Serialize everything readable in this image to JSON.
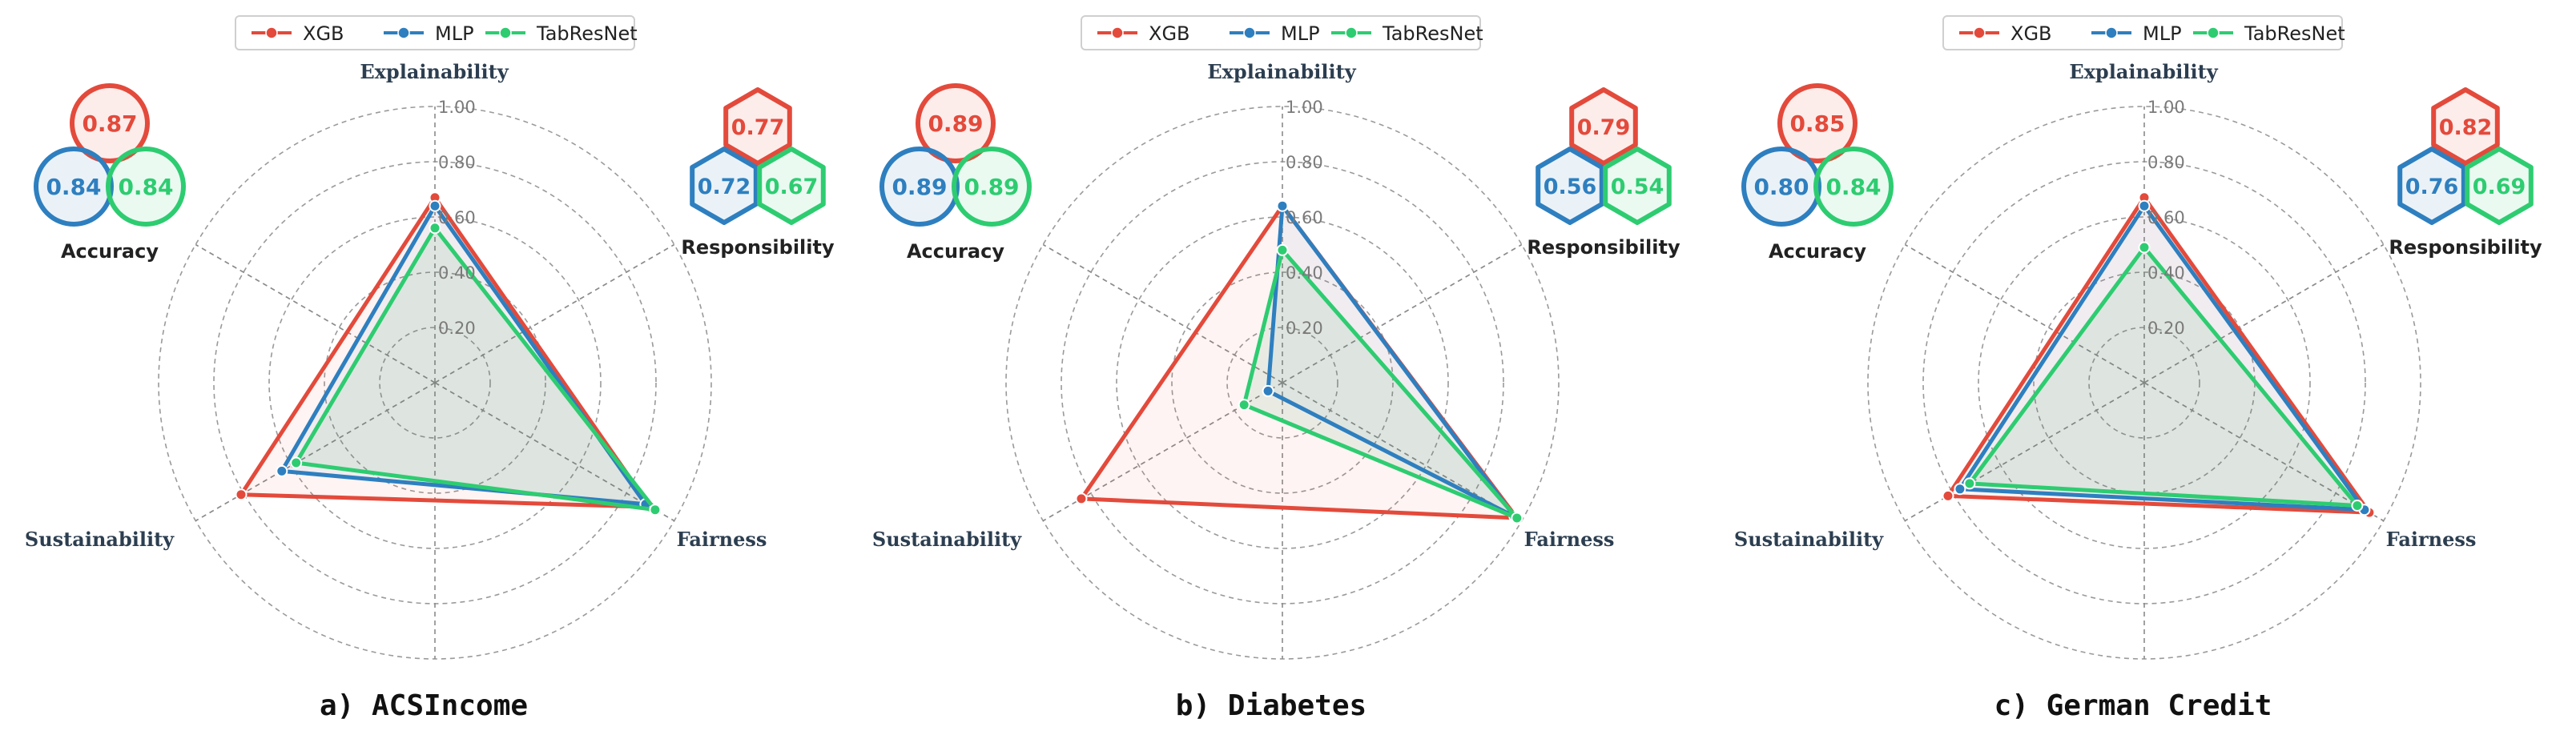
{
  "series_legend": [
    {
      "name": "XGB",
      "color": "#e34a3b"
    },
    {
      "name": "MLP",
      "color": "#2e7fbf"
    },
    {
      "name": "TabResNet",
      "color": "#2ecc71"
    }
  ],
  "chart_data": [
    {
      "type": "radar",
      "caption": "a) ACSIncome",
      "axes": [
        "Explainability",
        "Fairness",
        "Sustainability"
      ],
      "rlim": [
        0,
        1
      ],
      "r_ticks": [
        "0.20",
        "0.40",
        "0.60",
        "0.80",
        "1.00"
      ],
      "grid": true,
      "legend": "top",
      "series": [
        {
          "name": "XGB",
          "values": [
            0.67,
            0.9,
            0.81
          ]
        },
        {
          "name": "MLP",
          "values": [
            0.64,
            0.88,
            0.64
          ]
        },
        {
          "name": "TabResNet",
          "values": [
            0.56,
            0.92,
            0.58
          ]
        }
      ],
      "accuracy": {
        "label": "Accuracy",
        "XGB": "0.87",
        "MLP": "0.84",
        "TabResNet": "0.84"
      },
      "responsibility": {
        "label": "Responsibility",
        "XGB": "0.77",
        "MLP": "0.72",
        "TabResNet": "0.67"
      }
    },
    {
      "type": "radar",
      "caption": "b) Diabetes",
      "axes": [
        "Explainability",
        "Fairness",
        "Sustainability"
      ],
      "rlim": [
        0,
        1
      ],
      "r_ticks": [
        "0.20",
        "0.40",
        "0.60",
        "0.80",
        "1.00"
      ],
      "grid": true,
      "legend": "top",
      "series": [
        {
          "name": "XGB",
          "values": [
            0.64,
            0.98,
            0.84
          ]
        },
        {
          "name": "MLP",
          "values": [
            0.64,
            0.97,
            0.06
          ]
        },
        {
          "name": "TabResNet",
          "values": [
            0.48,
            0.98,
            0.16
          ]
        }
      ],
      "accuracy": {
        "label": "Accuracy",
        "XGB": "0.89",
        "MLP": "0.89",
        "TabResNet": "0.89"
      },
      "responsibility": {
        "label": "Responsibility",
        "XGB": "0.79",
        "MLP": "0.56",
        "TabResNet": "0.54"
      }
    },
    {
      "type": "radar",
      "caption": "c) German Credit",
      "axes": [
        "Explainability",
        "Fairness",
        "Sustainability"
      ],
      "rlim": [
        0,
        1
      ],
      "r_ticks": [
        "0.20",
        "0.40",
        "0.60",
        "0.80",
        "1.00"
      ],
      "grid": true,
      "legend": "top",
      "series": [
        {
          "name": "XGB",
          "values": [
            0.67,
            0.94,
            0.82
          ]
        },
        {
          "name": "MLP",
          "values": [
            0.64,
            0.92,
            0.77
          ]
        },
        {
          "name": "TabResNet",
          "values": [
            0.49,
            0.89,
            0.73
          ]
        }
      ],
      "accuracy": {
        "label": "Accuracy",
        "XGB": "0.85",
        "MLP": "0.80",
        "TabResNet": "0.84"
      },
      "responsibility": {
        "label": "Responsibility",
        "XGB": "0.82",
        "MLP": "0.76",
        "TabResNet": "0.69"
      }
    }
  ]
}
